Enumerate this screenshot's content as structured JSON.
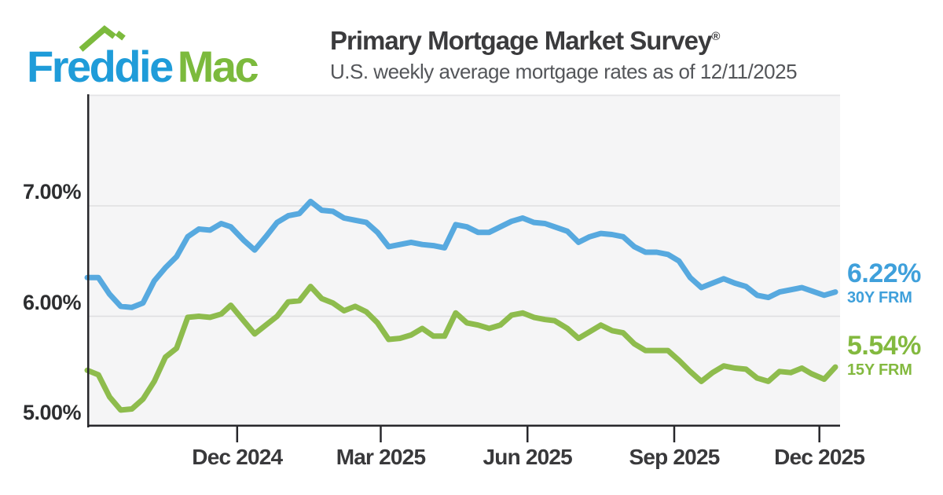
{
  "header": {
    "logo_text_1": "Freddie",
    "logo_text_2": "Mac",
    "title": "Primary Mortgage Market Survey",
    "title_mark": "®",
    "subtitle": "U.S. weekly average mortgage rates as of 12/11/2025"
  },
  "colors": {
    "logo_blue": "#1f9cd9",
    "logo_green": "#7cba3d",
    "line_30y": "#57a9df",
    "line_15y": "#8ebc4d",
    "text_30y": "#3fa0db",
    "text_15y": "#83b93f",
    "plot_background": "#f5f5f6",
    "gridline": "#dedee0",
    "axis": "#27272b",
    "axis_text": "#2d2e30"
  },
  "chart_data": {
    "type": "line",
    "title": "Primary Mortgage Market Survey",
    "subtitle": "U.S. weekly average mortgage rates as of 12/11/2025",
    "x_start_date": "2024-08-29",
    "x_end_date": "2025-12-11",
    "ylim": [
      5.0,
      8.0
    ],
    "grid": true,
    "legend_position": "right-end-labels",
    "yticks": [
      {
        "value": 7.0,
        "label": "7.00%"
      },
      {
        "value": 6.0,
        "label": "6.00%"
      },
      {
        "value": 5.0,
        "label": "5.00%"
      }
    ],
    "xticks": [
      {
        "date": "2024-12-01",
        "label": "Dec 2024"
      },
      {
        "date": "2025-03-01",
        "label": "Mar 2025"
      },
      {
        "date": "2025-06-01",
        "label": "Jun 2025"
      },
      {
        "date": "2025-09-01",
        "label": "Sep 2025"
      },
      {
        "date": "2025-12-01",
        "label": "Dec 2025"
      }
    ],
    "dates": [
      "2024-08-29",
      "2024-09-05",
      "2024-09-12",
      "2024-09-19",
      "2024-09-26",
      "2024-10-03",
      "2024-10-10",
      "2024-10-17",
      "2024-10-24",
      "2024-10-31",
      "2024-11-07",
      "2024-11-14",
      "2024-11-21",
      "2024-11-27",
      "2024-12-05",
      "2024-12-12",
      "2024-12-19",
      "2024-12-26",
      "2025-01-02",
      "2025-01-09",
      "2025-01-16",
      "2025-01-23",
      "2025-01-30",
      "2025-02-06",
      "2025-02-13",
      "2025-02-20",
      "2025-02-27",
      "2025-03-06",
      "2025-03-13",
      "2025-03-20",
      "2025-03-27",
      "2025-04-03",
      "2025-04-10",
      "2025-04-17",
      "2025-04-24",
      "2025-05-01",
      "2025-05-08",
      "2025-05-15",
      "2025-05-22",
      "2025-05-29",
      "2025-06-05",
      "2025-06-12",
      "2025-06-18",
      "2025-06-26",
      "2025-07-03",
      "2025-07-10",
      "2025-07-17",
      "2025-07-24",
      "2025-07-31",
      "2025-08-07",
      "2025-08-14",
      "2025-08-21",
      "2025-08-28",
      "2025-09-04",
      "2025-09-11",
      "2025-09-18",
      "2025-09-25",
      "2025-10-02",
      "2025-10-09",
      "2025-10-16",
      "2025-10-23",
      "2025-10-30",
      "2025-11-06",
      "2025-11-13",
      "2025-11-20",
      "2025-11-26",
      "2025-12-04",
      "2025-12-11"
    ],
    "series": [
      {
        "name": "30Y FRM",
        "color": "#57a9df",
        "end_value_label": "6.22%",
        "values": [
          6.35,
          6.35,
          6.2,
          6.09,
          6.08,
          6.12,
          6.32,
          6.44,
          6.54,
          6.72,
          6.79,
          6.78,
          6.84,
          6.81,
          6.69,
          6.6,
          6.72,
          6.85,
          6.91,
          6.93,
          7.04,
          6.96,
          6.95,
          6.89,
          6.87,
          6.85,
          6.76,
          6.63,
          6.65,
          6.67,
          6.65,
          6.64,
          6.62,
          6.83,
          6.81,
          6.76,
          6.76,
          6.81,
          6.86,
          6.89,
          6.85,
          6.84,
          6.81,
          6.77,
          6.67,
          6.72,
          6.75,
          6.74,
          6.72,
          6.63,
          6.58,
          6.58,
          6.56,
          6.5,
          6.35,
          6.26,
          6.3,
          6.34,
          6.3,
          6.27,
          6.19,
          6.17,
          6.22,
          6.24,
          6.26,
          6.23,
          6.19,
          6.22
        ]
      },
      {
        "name": "15Y FRM",
        "color": "#8ebc4d",
        "end_value_label": "5.54%",
        "values": [
          5.51,
          5.47,
          5.27,
          5.15,
          5.16,
          5.25,
          5.41,
          5.63,
          5.71,
          5.99,
          6.0,
          5.99,
          6.02,
          6.1,
          5.96,
          5.84,
          5.92,
          6.0,
          6.13,
          6.14,
          6.27,
          6.16,
          6.12,
          6.05,
          6.09,
          6.04,
          5.94,
          5.79,
          5.8,
          5.83,
          5.89,
          5.82,
          5.82,
          6.03,
          5.94,
          5.92,
          5.89,
          5.92,
          6.01,
          6.03,
          5.99,
          5.97,
          5.96,
          5.89,
          5.8,
          5.86,
          5.92,
          5.87,
          5.85,
          5.75,
          5.69,
          5.69,
          5.69,
          5.6,
          5.5,
          5.41,
          5.49,
          5.55,
          5.53,
          5.52,
          5.44,
          5.41,
          5.5,
          5.49,
          5.53,
          5.48,
          5.43,
          5.54
        ]
      }
    ]
  }
}
